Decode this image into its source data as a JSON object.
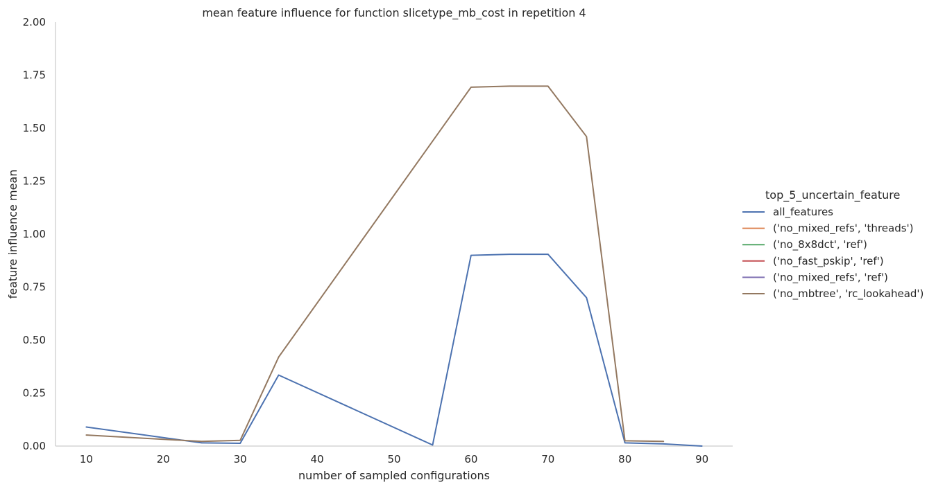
{
  "chart_data": {
    "type": "line",
    "title": "mean feature influence for function slicetype_mb_cost in repetition 4",
    "xlabel": "number of sampled configurations",
    "ylabel": "feature influence mean",
    "xlim": [
      6,
      94
    ],
    "ylim": [
      0,
      2.0
    ],
    "xticks": [
      10,
      20,
      30,
      40,
      50,
      60,
      70,
      80,
      90
    ],
    "yticks": [
      0.0,
      0.25,
      0.5,
      0.75,
      1.0,
      1.25,
      1.5,
      1.75,
      2.0
    ],
    "ytick_labels": [
      "0.00",
      "0.25",
      "0.50",
      "0.75",
      "1.00",
      "1.25",
      "1.50",
      "1.75",
      "2.00"
    ],
    "grid": false,
    "legend_title": "top_5_uncertain_feature",
    "legend_position": "right",
    "series": [
      {
        "name": "all_features",
        "color": "#4c72b0",
        "x": [
          10,
          25,
          30,
          35,
          55,
          60,
          65,
          70,
          75,
          80,
          85,
          90
        ],
        "y": [
          0.09,
          0.015,
          0.013,
          0.335,
          0.005,
          0.9,
          0.905,
          0.905,
          0.7,
          0.015,
          0.01,
          0.0
        ]
      },
      {
        "name": "('no_mixed_refs', 'threads')",
        "color": "#dd8452",
        "x": [],
        "y": []
      },
      {
        "name": "('no_8x8dct', 'ref')",
        "color": "#55a868",
        "x": [],
        "y": []
      },
      {
        "name": "('no_fast_pskip', 'ref')",
        "color": "#c44e52",
        "x": [],
        "y": []
      },
      {
        "name": "('no_mixed_refs', 'ref')",
        "color": "#8172b3",
        "x": [],
        "y": []
      },
      {
        "name": "('no_mbtree', 'rc_lookahead')",
        "color": "#937860",
        "x": [
          10,
          25,
          30,
          35,
          60,
          65,
          70,
          75,
          80,
          85
        ],
        "y": [
          0.052,
          0.022,
          0.027,
          0.42,
          1.693,
          1.698,
          1.698,
          1.46,
          0.025,
          0.022
        ]
      }
    ]
  }
}
